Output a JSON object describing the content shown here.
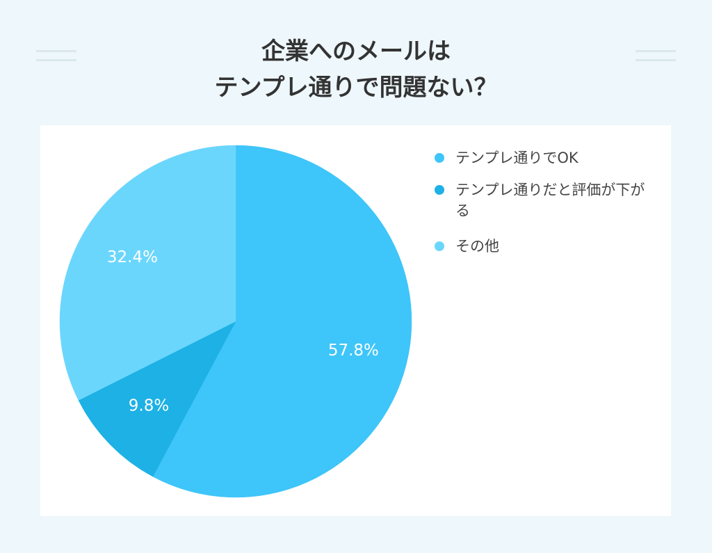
{
  "chart_data": {
    "type": "pie",
    "title": [
      "企業へのメールは",
      "テンプレ通りで問題ない？"
    ],
    "categories": [
      "テンプレ通りでOK",
      "テンプレ通りだと評価が下がる",
      "その他"
    ],
    "values": [
      57.8,
      9.8,
      32.4
    ],
    "value_labels": [
      "57.8%",
      "9.8%",
      "32.4%"
    ],
    "colors": [
      "#3ec5f9",
      "#1db1e5",
      "#6bd6fc"
    ],
    "legend": "right"
  }
}
